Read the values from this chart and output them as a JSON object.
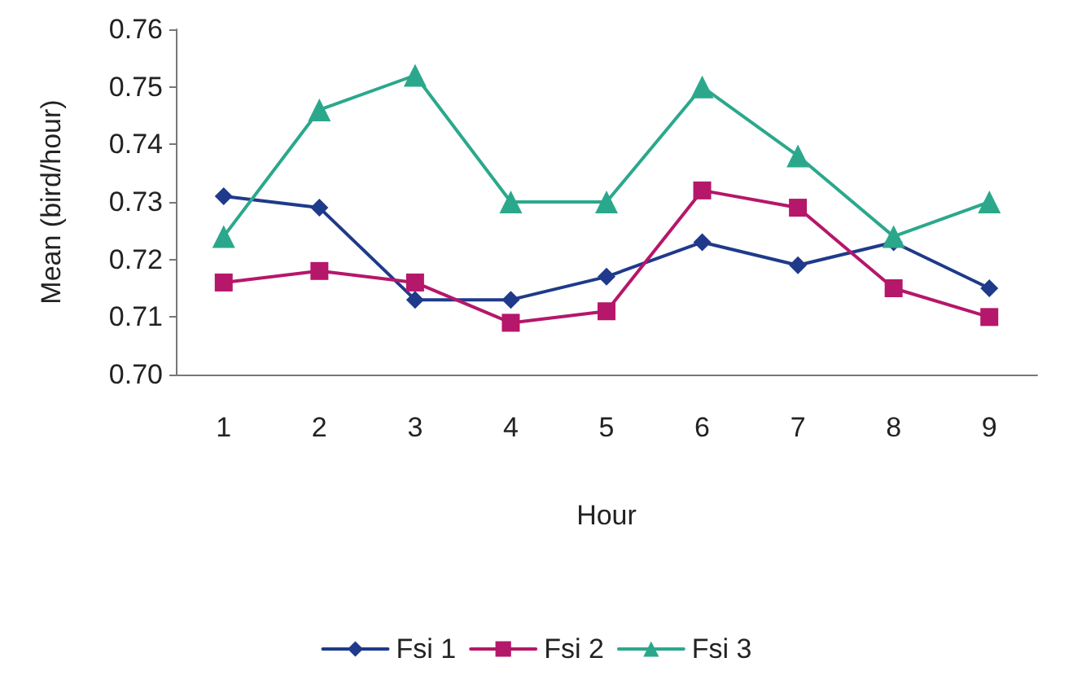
{
  "chart_data": {
    "type": "line",
    "xlabel": "Hour",
    "ylabel": "Mean (bird/hour)",
    "categories": [
      "1",
      "2",
      "3",
      "4",
      "5",
      "6",
      "7",
      "8",
      "9"
    ],
    "series": [
      {
        "name": "Fsi 1",
        "color": "#1f3a8a",
        "marker": "diamond",
        "values": [
          0.731,
          0.729,
          0.713,
          0.713,
          0.717,
          0.723,
          0.719,
          0.723,
          0.715
        ]
      },
      {
        "name": "Fsi 2",
        "color": "#b5176a",
        "marker": "square",
        "values": [
          0.716,
          0.718,
          0.716,
          0.709,
          0.711,
          0.732,
          0.729,
          0.715,
          0.71
        ]
      },
      {
        "name": "Fsi 3",
        "color": "#2ba88c",
        "marker": "triangle",
        "values": [
          0.724,
          0.746,
          0.752,
          0.73,
          0.73,
          0.75,
          0.738,
          0.724,
          0.73
        ]
      }
    ],
    "ylim": [
      0.7,
      0.76
    ],
    "yticks": [
      {
        "value": 0.7,
        "label": "0.70"
      },
      {
        "value": 0.71,
        "label": "0.71"
      },
      {
        "value": 0.72,
        "label": "0.72"
      },
      {
        "value": 0.73,
        "label": "0.73"
      },
      {
        "value": 0.74,
        "label": "0.74"
      },
      {
        "value": 0.75,
        "label": "0.75"
      },
      {
        "value": 0.76,
        "label": "0.76"
      }
    ],
    "grid": false,
    "legend": "bottom",
    "line_style": "solid"
  }
}
